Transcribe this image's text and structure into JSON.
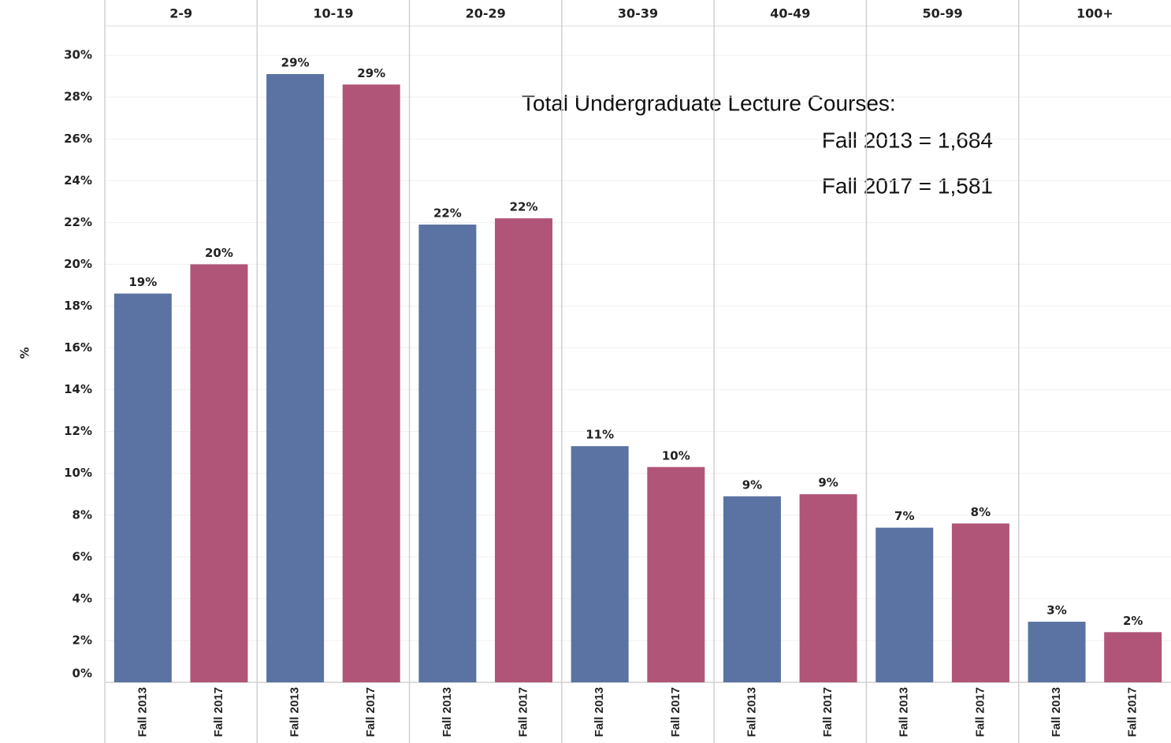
{
  "chart_data": {
    "type": "bar",
    "y_label": "%",
    "categories": [
      "2-9",
      "10-19",
      "20-29",
      "30-39",
      "40-49",
      "50-99",
      "100+"
    ],
    "series": [
      {
        "name": "Fall 2013",
        "color": "#5b73a2",
        "values": [
          18.6,
          29.1,
          21.9,
          11.3,
          8.9,
          7.4,
          2.9
        ],
        "value_labels": [
          "19%",
          "29%",
          "22%",
          "11%",
          "9%",
          "7%",
          "3%"
        ]
      },
      {
        "name": "Fall 2017",
        "color": "#b05578",
        "values": [
          20.0,
          28.6,
          22.2,
          10.3,
          9.0,
          7.6,
          2.4
        ],
        "value_labels": [
          "20%",
          "29%",
          "22%",
          "10%",
          "9%",
          "8%",
          "2%"
        ]
      }
    ],
    "annotations": [
      "Total Undergraduate Lecture Courses:",
      "Fall 2013 = 1,684",
      "Fall 2017 = 1,581"
    ],
    "ylim": [
      0,
      31.4
    ],
    "yticks": [
      {
        "value": 0,
        "label": "0%"
      },
      {
        "value": 2,
        "label": "2%"
      },
      {
        "value": 4,
        "label": "4%"
      },
      {
        "value": 6,
        "label": "6%"
      },
      {
        "value": 8,
        "label": "8%"
      },
      {
        "value": 10,
        "label": "10%"
      },
      {
        "value": 12,
        "label": "12%"
      },
      {
        "value": 14,
        "label": "14%"
      },
      {
        "value": 16,
        "label": "16%"
      },
      {
        "value": 18,
        "label": "18%"
      },
      {
        "value": 20,
        "label": "20%"
      },
      {
        "value": 22,
        "label": "22%"
      },
      {
        "value": 24,
        "label": "24%"
      },
      {
        "value": 26,
        "label": "26%"
      },
      {
        "value": 28,
        "label": "28%"
      },
      {
        "value": 30,
        "label": "30%"
      }
    ],
    "grid": true
  }
}
